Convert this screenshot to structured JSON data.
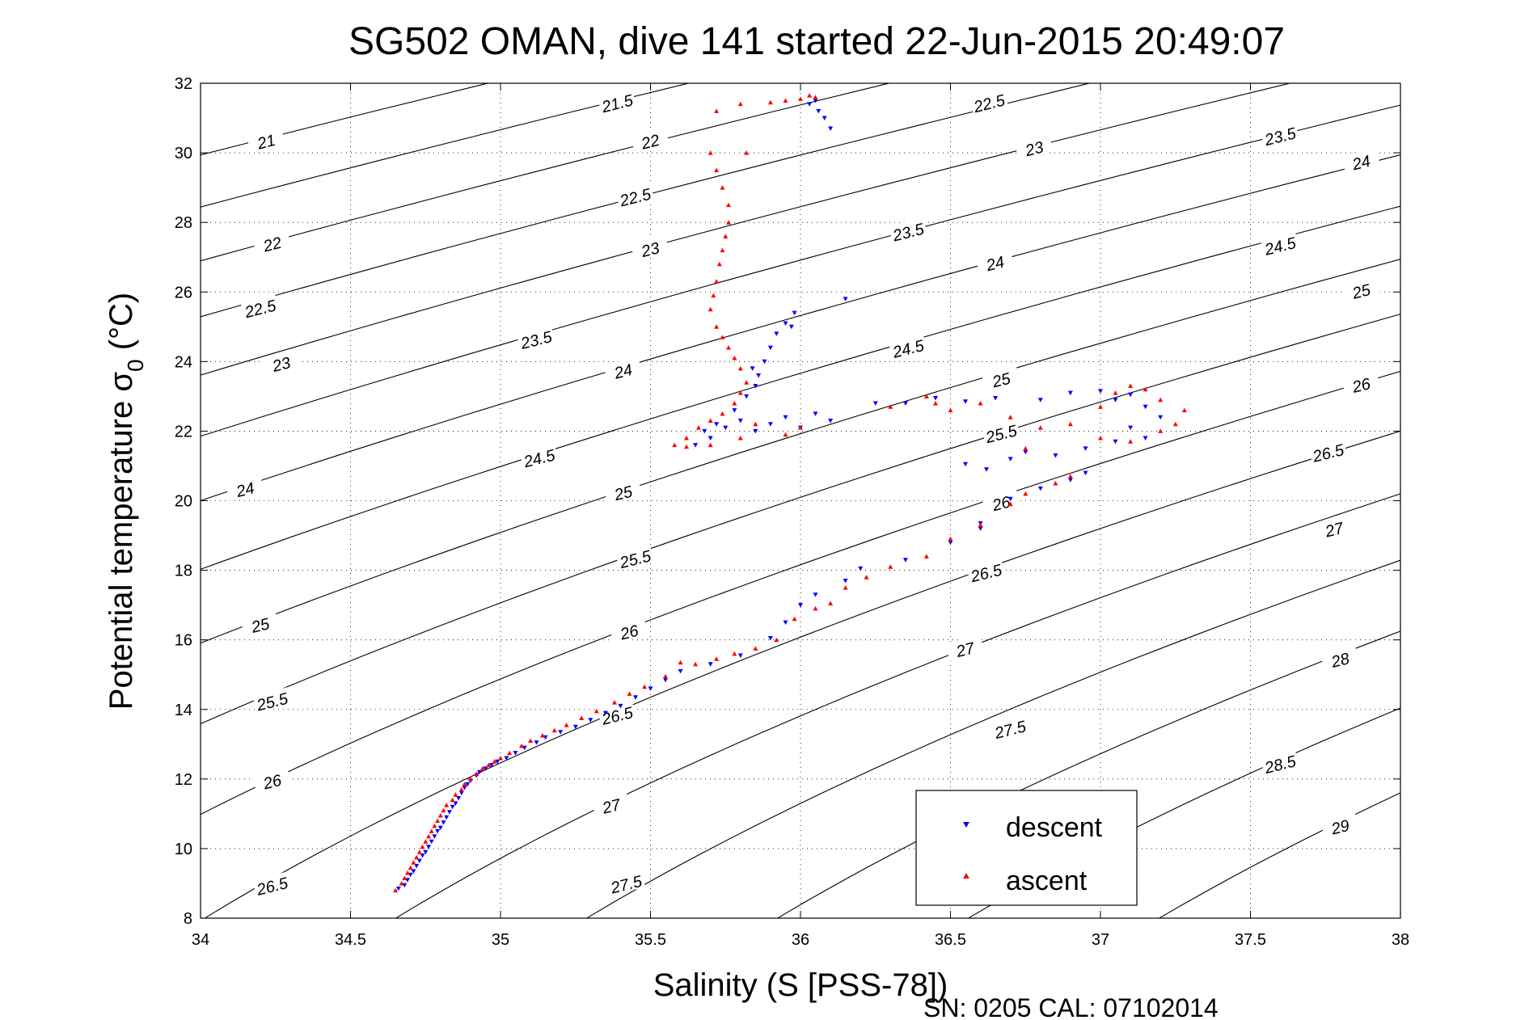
{
  "chart_data": {
    "type": "scatter",
    "title": "SG502 OMAN, dive 141 started 22-Jun-2015 20:49:07",
    "xlabel": "Salinity (S [PSS-78])",
    "ylabel_main": "Potential temperature σ",
    "ylabel_sub": "0",
    "ylabel_unit": " (°C)",
    "xlim": [
      34,
      38
    ],
    "ylim": [
      8,
      32
    ],
    "x_ticks": [
      "34",
      "34.5",
      "35",
      "35.5",
      "36",
      "36.5",
      "37",
      "37.5",
      "38"
    ],
    "y_ticks": [
      "8",
      "10",
      "12",
      "14",
      "16",
      "18",
      "20",
      "22",
      "24",
      "26",
      "28",
      "30",
      "32"
    ],
    "grid": true,
    "legend_position": "bottom-right",
    "footer": "SN: 0205  CAL: 07102014",
    "density_contours": [
      21,
      21.5,
      22,
      22.5,
      23,
      23.5,
      24,
      24.5,
      25,
      25.5,
      26,
      26.5,
      27,
      27.5,
      28,
      28.5,
      29
    ],
    "contour_labels": [
      {
        "text": "21",
        "s": 34.22,
        "t": 30.3
      },
      {
        "text": "21.5",
        "s": 35.39,
        "t": 31.4
      },
      {
        "text": "22.5",
        "s": 36.63,
        "t": 31.4
      },
      {
        "text": "22",
        "s": 35.5,
        "t": 30.3
      },
      {
        "text": "23",
        "s": 36.78,
        "t": 30.1
      },
      {
        "text": "23.5",
        "s": 37.6,
        "t": 30.45
      },
      {
        "text": "24",
        "s": 37.87,
        "t": 29.7
      },
      {
        "text": "22.5",
        "s": 35.45,
        "t": 28.7
      },
      {
        "text": "23.5",
        "s": 36.36,
        "t": 27.7
      },
      {
        "text": "24.5",
        "s": 37.6,
        "t": 27.3
      },
      {
        "text": "22",
        "s": 34.24,
        "t": 27.35
      },
      {
        "text": "23",
        "s": 35.5,
        "t": 27.2
      },
      {
        "text": "24",
        "s": 36.65,
        "t": 26.8
      },
      {
        "text": "25",
        "s": 37.87,
        "t": 26.0
      },
      {
        "text": "22.5",
        "s": 34.2,
        "t": 25.5
      },
      {
        "text": "23.5",
        "s": 35.12,
        "t": 24.6
      },
      {
        "text": "23",
        "s": 34.27,
        "t": 23.9
      },
      {
        "text": "24.5",
        "s": 36.36,
        "t": 24.35
      },
      {
        "text": "24",
        "s": 35.41,
        "t": 23.7
      },
      {
        "text": "25",
        "s": 36.67,
        "t": 23.45
      },
      {
        "text": "26",
        "s": 37.87,
        "t": 23.3
      },
      {
        "text": "25.5",
        "s": 36.67,
        "t": 21.9
      },
      {
        "text": "24.5",
        "s": 35.13,
        "t": 21.2
      },
      {
        "text": "26.5",
        "s": 37.76,
        "t": 21.35
      },
      {
        "text": "24",
        "s": 34.15,
        "t": 20.3
      },
      {
        "text": "25",
        "s": 35.41,
        "t": 20.2
      },
      {
        "text": "26",
        "s": 36.67,
        "t": 19.9
      },
      {
        "text": "27",
        "s": 37.78,
        "t": 19.15
      },
      {
        "text": "25.5",
        "s": 35.45,
        "t": 18.3
      },
      {
        "text": "26.5",
        "s": 36.62,
        "t": 17.9
      },
      {
        "text": "25",
        "s": 34.2,
        "t": 16.4
      },
      {
        "text": "26",
        "s": 35.43,
        "t": 16.2
      },
      {
        "text": "27",
        "s": 36.55,
        "t": 15.7
      },
      {
        "text": "28",
        "s": 37.8,
        "t": 15.4
      },
      {
        "text": "25.5",
        "s": 34.24,
        "t": 14.2
      },
      {
        "text": "26.5",
        "s": 35.39,
        "t": 13.8
      },
      {
        "text": "27.5",
        "s": 36.7,
        "t": 13.4
      },
      {
        "text": "28.5",
        "s": 37.6,
        "t": 12.4
      },
      {
        "text": "26",
        "s": 34.24,
        "t": 11.9
      },
      {
        "text": "27",
        "s": 35.37,
        "t": 11.2
      },
      {
        "text": "29",
        "s": 37.8,
        "t": 10.6
      },
      {
        "text": "26.5",
        "s": 34.24,
        "t": 8.9
      },
      {
        "text": "27.5",
        "s": 35.42,
        "t": 8.95
      }
    ],
    "series": [
      {
        "name": "descent",
        "color": "#0000ff",
        "marker": "triangle-down",
        "points": [
          [
            34.66,
            8.85
          ],
          [
            34.68,
            8.95
          ],
          [
            34.69,
            9.1
          ],
          [
            34.7,
            9.25
          ],
          [
            34.71,
            9.35
          ],
          [
            34.72,
            9.5
          ],
          [
            34.73,
            9.65
          ],
          [
            34.74,
            9.8
          ],
          [
            34.75,
            9.9
          ],
          [
            34.76,
            10.05
          ],
          [
            34.77,
            10.2
          ],
          [
            34.78,
            10.35
          ],
          [
            34.79,
            10.5
          ],
          [
            34.8,
            10.6
          ],
          [
            34.81,
            10.75
          ],
          [
            34.82,
            10.9
          ],
          [
            34.83,
            11.05
          ],
          [
            34.84,
            11.2
          ],
          [
            34.85,
            11.3
          ],
          [
            34.86,
            11.45
          ],
          [
            34.87,
            11.6
          ],
          [
            34.88,
            11.75
          ],
          [
            34.89,
            11.85
          ],
          [
            34.9,
            11.95
          ],
          [
            34.92,
            12.1
          ],
          [
            34.93,
            12.2
          ],
          [
            34.95,
            12.3
          ],
          [
            34.97,
            12.4
          ],
          [
            34.99,
            12.5
          ],
          [
            35.02,
            12.6
          ],
          [
            35.05,
            12.75
          ],
          [
            35.08,
            12.9
          ],
          [
            35.12,
            13.05
          ],
          [
            35.15,
            13.2
          ],
          [
            35.2,
            13.35
          ],
          [
            35.25,
            13.5
          ],
          [
            35.3,
            13.7
          ],
          [
            35.35,
            13.9
          ],
          [
            35.4,
            14.1
          ],
          [
            35.45,
            14.35
          ],
          [
            35.5,
            14.6
          ],
          [
            35.55,
            14.85
          ],
          [
            35.6,
            15.1
          ],
          [
            35.7,
            15.3
          ],
          [
            35.8,
            15.55
          ],
          [
            35.9,
            16.05
          ],
          [
            35.95,
            16.5
          ],
          [
            36.0,
            17.0
          ],
          [
            36.05,
            17.3
          ],
          [
            36.15,
            17.7
          ],
          [
            36.2,
            18.05
          ],
          [
            36.35,
            18.3
          ],
          [
            36.5,
            18.8
          ],
          [
            36.6,
            19.35
          ],
          [
            36.7,
            20.05
          ],
          [
            36.8,
            20.35
          ],
          [
            36.9,
            20.6
          ],
          [
            36.95,
            20.8
          ],
          [
            36.62,
            20.9
          ],
          [
            36.55,
            21.05
          ],
          [
            36.6,
            19.2
          ],
          [
            36.7,
            21.2
          ],
          [
            36.75,
            21.4
          ],
          [
            36.85,
            21.3
          ],
          [
            36.95,
            21.5
          ],
          [
            37.05,
            21.7
          ],
          [
            37.15,
            21.8
          ],
          [
            37.1,
            22.1
          ],
          [
            37.2,
            22.4
          ],
          [
            37.15,
            22.7
          ],
          [
            37.05,
            22.9
          ],
          [
            37.1,
            23.05
          ],
          [
            37.0,
            23.15
          ],
          [
            36.9,
            23.1
          ],
          [
            36.8,
            22.9
          ],
          [
            36.65,
            22.95
          ],
          [
            36.55,
            22.85
          ],
          [
            36.45,
            22.95
          ],
          [
            36.35,
            22.8
          ],
          [
            36.25,
            22.8
          ],
          [
            36.1,
            22.3
          ],
          [
            36.05,
            22.5
          ],
          [
            36.0,
            22.1
          ],
          [
            35.95,
            22.4
          ],
          [
            35.9,
            22.2
          ],
          [
            35.85,
            22.0
          ],
          [
            35.8,
            22.3
          ],
          [
            35.75,
            22.1
          ],
          [
            35.7,
            21.8
          ],
          [
            35.65,
            21.6
          ],
          [
            35.68,
            22.0
          ],
          [
            35.72,
            22.2
          ],
          [
            35.78,
            22.6
          ],
          [
            35.82,
            23.0
          ],
          [
            35.85,
            23.3
          ],
          [
            35.86,
            23.6
          ],
          [
            35.84,
            23.8
          ],
          [
            35.88,
            24.0
          ],
          [
            35.9,
            24.4
          ],
          [
            35.92,
            24.8
          ],
          [
            35.95,
            25.1
          ],
          [
            35.98,
            25.4
          ],
          [
            36.15,
            25.8
          ],
          [
            35.97,
            25.0
          ],
          [
            36.03,
            31.4
          ],
          [
            36.06,
            31.2
          ],
          [
            36.08,
            31.0
          ],
          [
            36.1,
            30.7
          ],
          [
            36.05,
            31.5
          ]
        ]
      },
      {
        "name": "ascent",
        "color": "#ff0000",
        "marker": "triangle-up",
        "points": [
          [
            34.65,
            8.8
          ],
          [
            34.67,
            9.0
          ],
          [
            34.68,
            9.15
          ],
          [
            34.69,
            9.3
          ],
          [
            34.7,
            9.45
          ],
          [
            34.71,
            9.6
          ],
          [
            34.72,
            9.75
          ],
          [
            34.73,
            9.9
          ],
          [
            34.74,
            10.05
          ],
          [
            34.75,
            10.2
          ],
          [
            34.76,
            10.35
          ],
          [
            34.77,
            10.5
          ],
          [
            34.78,
            10.65
          ],
          [
            34.79,
            10.8
          ],
          [
            34.8,
            10.95
          ],
          [
            34.81,
            11.1
          ],
          [
            34.82,
            11.25
          ],
          [
            34.84,
            11.4
          ],
          [
            34.85,
            11.55
          ],
          [
            34.87,
            11.7
          ],
          [
            34.88,
            11.85
          ],
          [
            34.9,
            12.0
          ],
          [
            34.92,
            12.15
          ],
          [
            34.94,
            12.3
          ],
          [
            34.96,
            12.4
          ],
          [
            34.98,
            12.5
          ],
          [
            35.0,
            12.6
          ],
          [
            35.03,
            12.75
          ],
          [
            35.07,
            12.95
          ],
          [
            35.1,
            13.1
          ],
          [
            35.14,
            13.25
          ],
          [
            35.18,
            13.4
          ],
          [
            35.22,
            13.55
          ],
          [
            35.27,
            13.75
          ],
          [
            35.32,
            13.95
          ],
          [
            35.38,
            14.2
          ],
          [
            35.43,
            14.45
          ],
          [
            35.48,
            14.65
          ],
          [
            35.55,
            14.95
          ],
          [
            35.6,
            15.35
          ],
          [
            35.65,
            15.3
          ],
          [
            35.72,
            15.45
          ],
          [
            35.78,
            15.6
          ],
          [
            35.85,
            15.75
          ],
          [
            35.92,
            16.0
          ],
          [
            35.98,
            16.6
          ],
          [
            36.05,
            16.9
          ],
          [
            36.1,
            17.05
          ],
          [
            36.15,
            17.5
          ],
          [
            36.22,
            17.8
          ],
          [
            36.3,
            18.1
          ],
          [
            36.42,
            18.4
          ],
          [
            36.5,
            18.9
          ],
          [
            36.6,
            19.3
          ],
          [
            36.7,
            19.9
          ],
          [
            36.75,
            20.2
          ],
          [
            36.85,
            20.5
          ],
          [
            36.9,
            20.7
          ],
          [
            37.0,
            21.8
          ],
          [
            37.1,
            21.7
          ],
          [
            37.2,
            22.0
          ],
          [
            37.25,
            22.2
          ],
          [
            37.28,
            22.6
          ],
          [
            37.2,
            22.9
          ],
          [
            37.15,
            23.2
          ],
          [
            37.1,
            23.3
          ],
          [
            37.05,
            23.1
          ],
          [
            37.0,
            22.7
          ],
          [
            36.9,
            22.2
          ],
          [
            36.8,
            22.1
          ],
          [
            36.75,
            21.5
          ],
          [
            36.7,
            22.4
          ],
          [
            36.6,
            22.8
          ],
          [
            36.5,
            22.6
          ],
          [
            36.45,
            22.8
          ],
          [
            36.42,
            23.0
          ],
          [
            36.3,
            22.7
          ],
          [
            36.0,
            22.1
          ],
          [
            35.95,
            21.9
          ],
          [
            35.85,
            22.2
          ],
          [
            35.8,
            21.8
          ],
          [
            35.7,
            21.6
          ],
          [
            35.62,
            21.55
          ],
          [
            35.58,
            21.6
          ],
          [
            35.62,
            21.8
          ],
          [
            35.66,
            22.1
          ],
          [
            35.7,
            22.3
          ],
          [
            35.74,
            22.5
          ],
          [
            35.78,
            22.8
          ],
          [
            35.8,
            23.1
          ],
          [
            35.82,
            23.4
          ],
          [
            35.8,
            23.8
          ],
          [
            35.78,
            24.1
          ],
          [
            35.76,
            24.4
          ],
          [
            35.74,
            24.7
          ],
          [
            35.72,
            25.0
          ],
          [
            35.7,
            25.5
          ],
          [
            35.71,
            25.9
          ],
          [
            35.72,
            26.3
          ],
          [
            35.73,
            26.8
          ],
          [
            35.74,
            27.2
          ],
          [
            35.75,
            27.6
          ],
          [
            35.76,
            28.0
          ],
          [
            35.76,
            28.5
          ],
          [
            35.74,
            29.0
          ],
          [
            35.72,
            29.5
          ],
          [
            35.7,
            30.0
          ],
          [
            35.72,
            31.2
          ],
          [
            35.8,
            31.4
          ],
          [
            35.9,
            31.45
          ],
          [
            35.95,
            31.5
          ],
          [
            36.0,
            31.55
          ],
          [
            36.03,
            31.65
          ],
          [
            36.05,
            31.6
          ],
          [
            35.82,
            30.0
          ]
        ]
      }
    ]
  }
}
